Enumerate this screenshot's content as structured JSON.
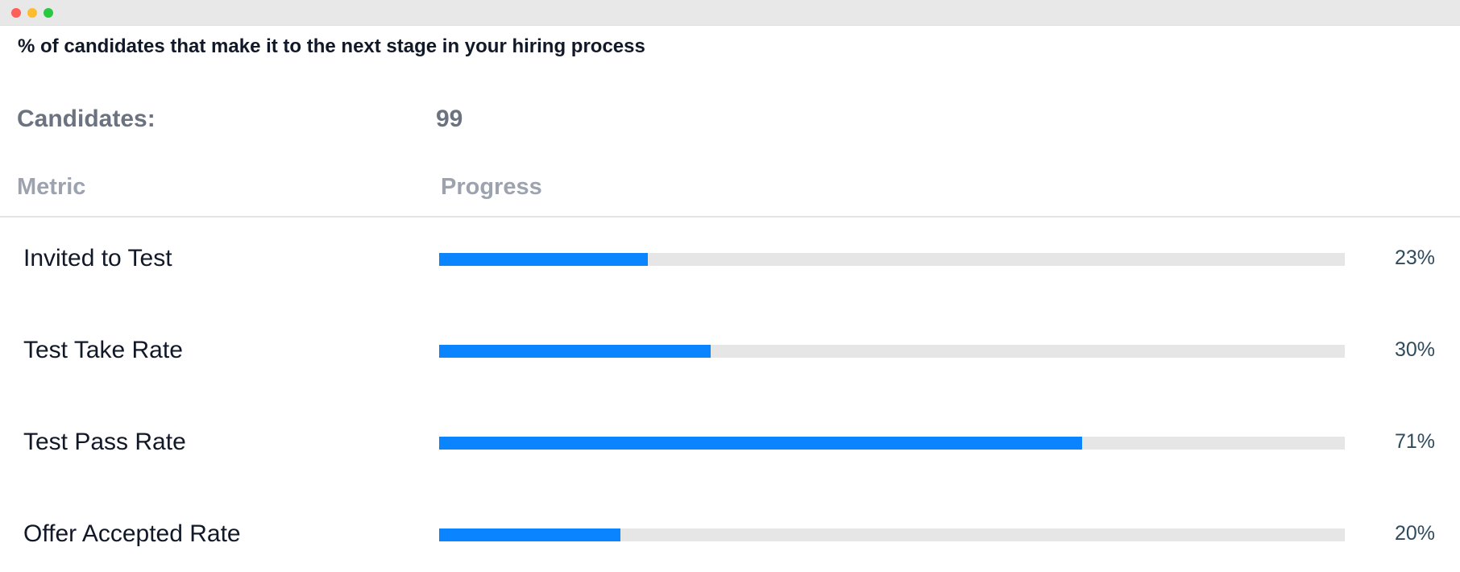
{
  "heading": "% of candidates that make it to the next stage in your hiring process",
  "candidates": {
    "label": "Candidates:",
    "value": "99"
  },
  "columns": {
    "metric": "Metric",
    "progress": "Progress"
  },
  "colors": {
    "bar_fill": "#0a84ff",
    "bar_track": "#e6e6e6"
  },
  "rows": [
    {
      "label": "Invited to Test",
      "value_text": "23%",
      "progress": 23
    },
    {
      "label": "Test Take Rate",
      "value_text": "30%",
      "progress": 30
    },
    {
      "label": "Test Pass Rate",
      "value_text": "71%",
      "progress": 71
    },
    {
      "label": "Offer Accepted Rate",
      "value_text": "20%",
      "progress": 20
    }
  ]
}
